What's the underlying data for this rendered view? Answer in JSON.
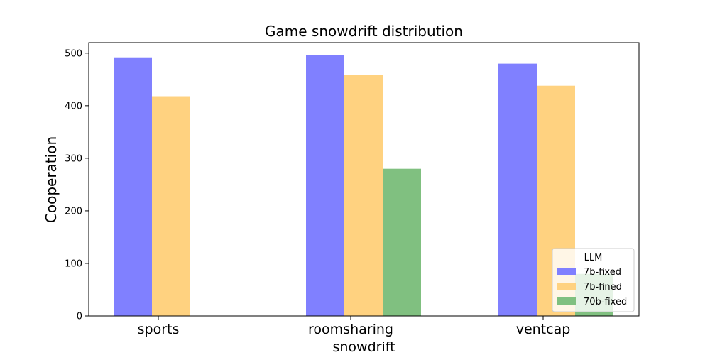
{
  "chart_data": {
    "type": "bar",
    "title": "Game snowdrift distribution",
    "xlabel": "snowdrift",
    "ylabel": "Cooperation",
    "categories": [
      "sports",
      "roomsharing",
      "ventcap"
    ],
    "ylim": [
      0,
      520
    ],
    "yticks": [
      0,
      100,
      200,
      300,
      400,
      500
    ],
    "legend": {
      "title": "LLM",
      "placement": "lower-right"
    },
    "series": [
      {
        "name": "7b-fixed",
        "color": "#8080ff",
        "values": [
          492,
          497,
          480
        ]
      },
      {
        "name": "7b-fined",
        "color": "#ffd280",
        "values": [
          418,
          459,
          438
        ]
      },
      {
        "name": "70b-fixed",
        "color": "#80c080",
        "values": [
          0,
          280,
          80
        ]
      }
    ]
  }
}
